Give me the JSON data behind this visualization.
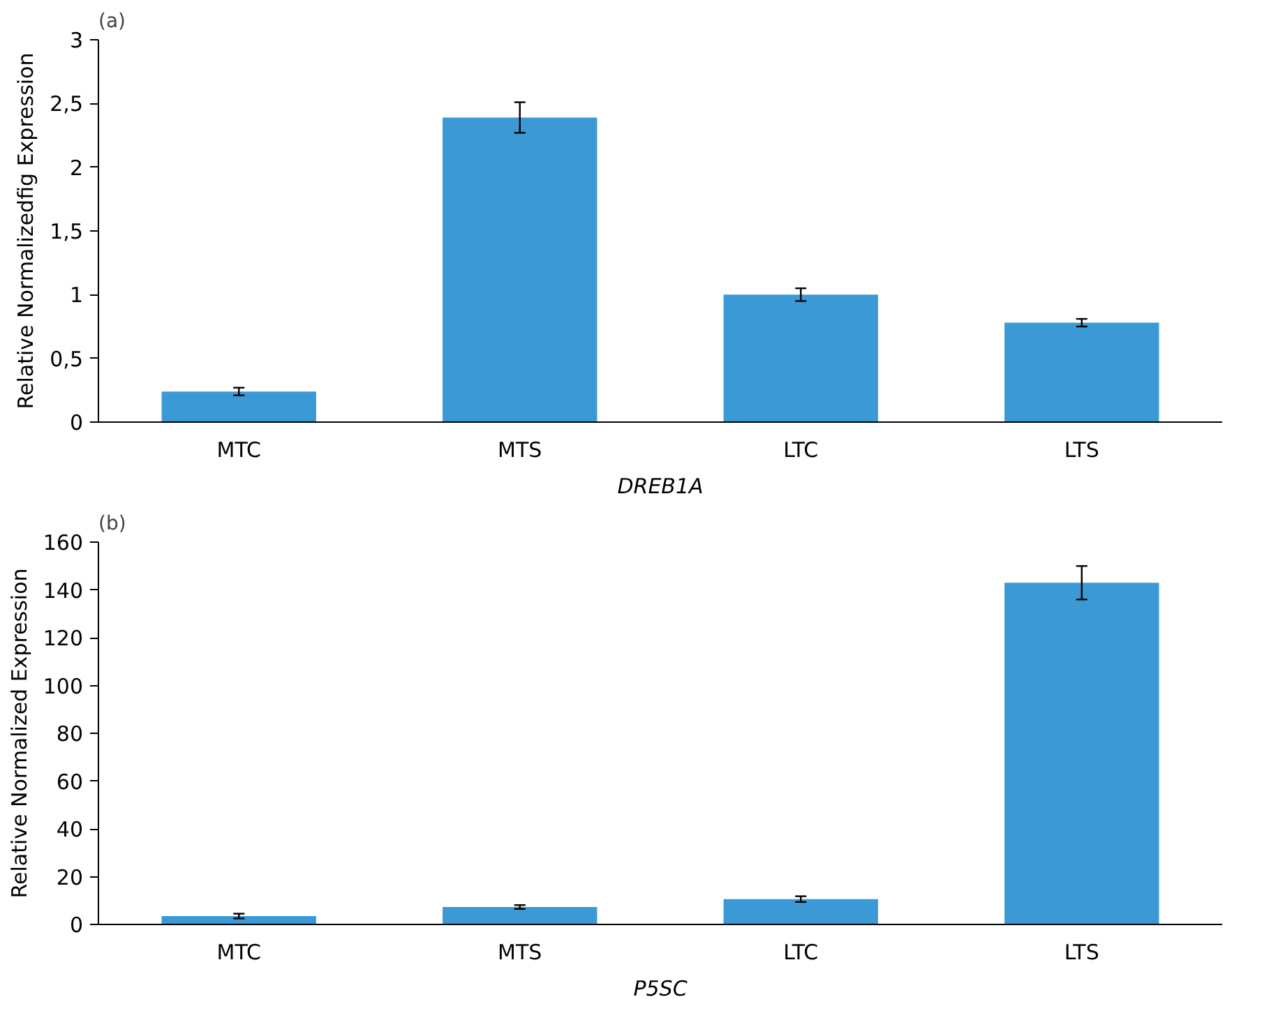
{
  "chart_data": [
    {
      "type": "bar",
      "title": "(a)",
      "xlabel": "DREB1A",
      "ylabel": "Relative Normalizedfig Expression",
      "categories": [
        "MTC",
        "MTS",
        "LTC",
        "LTS"
      ],
      "values": [
        0.24,
        2.39,
        1.0,
        0.78
      ],
      "errors": [
        0.03,
        0.12,
        0.05,
        0.03
      ],
      "color": "#3b9ad6",
      "ylim": [
        0,
        3
      ],
      "yticks": [
        0,
        {
          "value": 0.5,
          "label": "0,5"
        },
        1,
        {
          "value": 1.5,
          "label": "1,5"
        },
        2,
        {
          "value": 2.5,
          "label": "2,5"
        },
        3
      ],
      "grid": false
    },
    {
      "type": "bar",
      "title": "(b)",
      "xlabel": "P5SC",
      "ylabel": "Relative Normalized Expression",
      "categories": [
        "MTC",
        "MTS",
        "LTC",
        "LTS"
      ],
      "values": [
        3.5,
        7.3,
        10.6,
        143
      ],
      "errors": [
        1,
        0.8,
        1.2,
        7
      ],
      "color": "#3b9ad6",
      "ylim": [
        0,
        160
      ],
      "yticks": [
        0,
        20,
        40,
        60,
        80,
        100,
        120,
        140,
        160
      ],
      "grid": false
    }
  ]
}
